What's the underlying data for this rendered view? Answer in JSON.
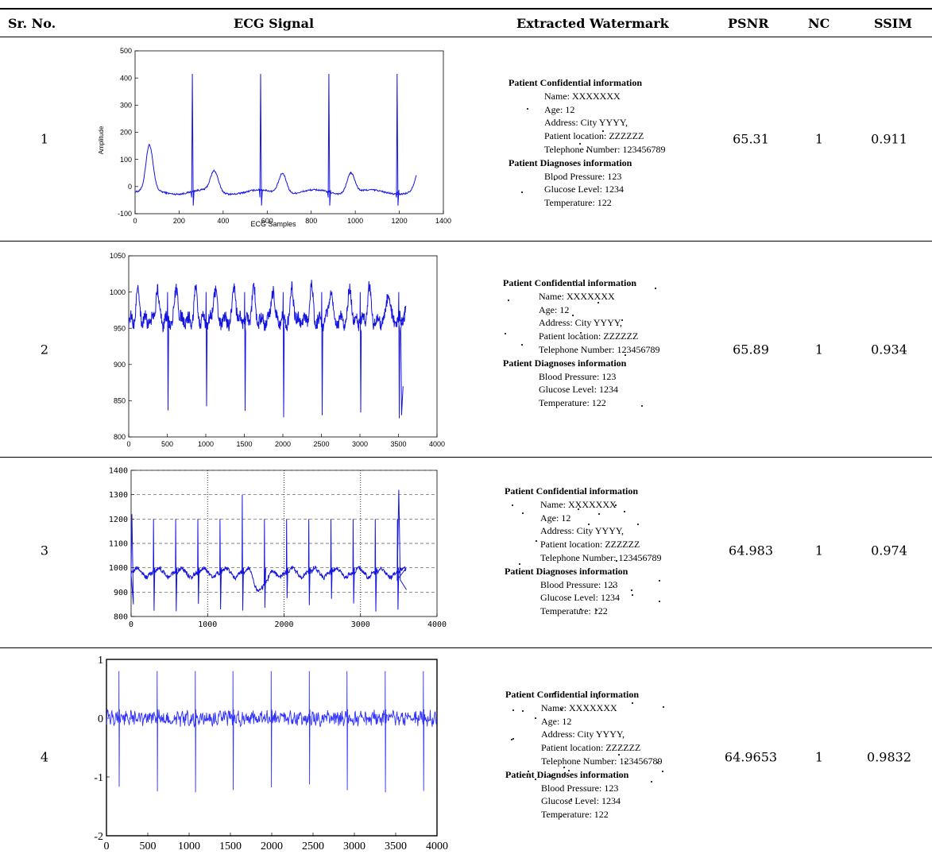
{
  "table": {
    "headers": {
      "sr_no": "Sr. No.",
      "ecg_signal": "ECG Signal",
      "extracted_watermark": "Extracted Watermark",
      "psnr": "PSNR",
      "nc": "NC",
      "ssim": "SSIM"
    },
    "rows": [
      {
        "sr": "1",
        "psnr": "65.31",
        "nc": "1",
        "ssim": "0.911"
      },
      {
        "sr": "2",
        "psnr": "65.89",
        "nc": "1",
        "ssim": "0.934"
      },
      {
        "sr": "3",
        "psnr": "64.983",
        "nc": "1",
        "ssim": "0.974"
      },
      {
        "sr": "4",
        "psnr": "64.9653",
        "nc": "1",
        "ssim": "0.9832"
      }
    ]
  },
  "watermark": {
    "lines": [
      {
        "text": "Patient Confidential information",
        "style": "heading"
      },
      {
        "text": "Name:  XXXXXXX",
        "style": "indent"
      },
      {
        "text": "Age: 12",
        "style": "indent"
      },
      {
        "text": "Address: City YYYY,",
        "style": "indent"
      },
      {
        "text": "Patient location: ZZZZZZ",
        "style": "indent"
      },
      {
        "text": "Telephone Number: 123456789",
        "style": "indent"
      },
      {
        "text": "Patient Diagnoses information",
        "style": "heading"
      },
      {
        "text": "Blood Pressure: 123",
        "style": "indent"
      },
      {
        "text": "Glucose Level: 1234",
        "style": "indent"
      },
      {
        "text": "Temperature: 122",
        "style": "indent"
      }
    ]
  },
  "chart_data": [
    {
      "type": "line",
      "ylabel": "Amplitude",
      "xlabel": "ECG Samples",
      "xlim": [
        0,
        1400
      ],
      "ylim": [
        -100,
        500
      ],
      "xticks": [
        0,
        200,
        400,
        600,
        800,
        1000,
        1200,
        1400
      ],
      "yticks": [
        -100,
        0,
        100,
        200,
        300,
        400,
        500
      ],
      "grid": false,
      "series": [
        {
          "color": "#1515e0",
          "n_samples": 1280,
          "r_peaks_x": [
            260,
            570,
            880,
            1190
          ],
          "r_peak_y": 415,
          "s_trough_y": -70,
          "baseline_y": 0
        }
      ]
    },
    {
      "type": "line",
      "xlabel": "",
      "ylabel": "",
      "xlim": [
        0,
        4000
      ],
      "ylim": [
        800,
        1050
      ],
      "xticks": [
        0,
        500,
        1000,
        1500,
        2000,
        2500,
        3000,
        3500,
        4000
      ],
      "yticks": [
        800,
        850,
        900,
        950,
        1000,
        1050
      ],
      "grid": false,
      "series": [
        {
          "color": "#1515e0",
          "n_samples": 3600,
          "s_trough_y": 835,
          "peak_y": 1015,
          "baseline_y": 960
        }
      ]
    },
    {
      "type": "line",
      "xlabel": "",
      "ylabel": "",
      "xlim": [
        0,
        4000
      ],
      "ylim": [
        800,
        1400
      ],
      "xticks": [
        0,
        1000,
        2000,
        3000,
        4000
      ],
      "yticks": [
        800,
        900,
        1000,
        1100,
        1200,
        1300,
        1400
      ],
      "grid": true,
      "series": [
        {
          "color": "#1515e0",
          "n_samples": 3600,
          "r_peak_y": 1200,
          "s_trough_y": 850,
          "baseline_y": 1000
        }
      ]
    },
    {
      "type": "line",
      "xlabel": "",
      "ylabel": "",
      "xlim": [
        0,
        4000
      ],
      "ylim": [
        -2,
        1
      ],
      "xticks": [
        0,
        500,
        1000,
        1500,
        2000,
        2500,
        3000,
        3500,
        4000
      ],
      "yticks": [
        -2,
        -1,
        0,
        1
      ],
      "ytick_labels": [
        "-2",
        "-1",
        "0",
        "1"
      ],
      "grid": false,
      "series": [
        {
          "color": "#3030ff",
          "n_samples": 4000,
          "r_peak_y": 0.8,
          "s_trough_y": -1.2,
          "baseline_y": 0
        }
      ]
    }
  ]
}
